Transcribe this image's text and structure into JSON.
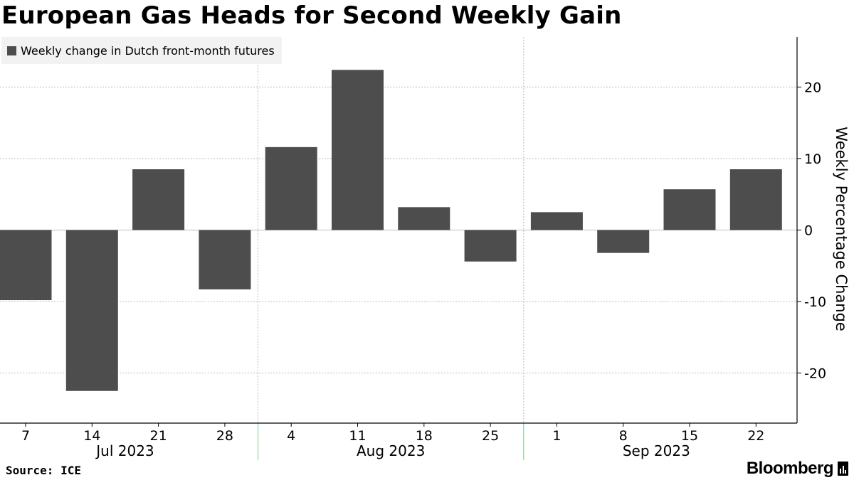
{
  "title": "European Gas Heads for Second Weekly Gain",
  "source": "Source: ICE",
  "brand": "Bloomberg",
  "chart_data": {
    "type": "bar",
    "series": [
      {
        "name": "Weekly change in Dutch front-month futures",
        "color": "#4d4d4d",
        "values": [
          -9.8,
          -22.5,
          8.5,
          -8.3,
          11.6,
          22.4,
          3.2,
          -4.4,
          2.5,
          -3.2,
          5.7,
          8.5
        ]
      }
    ],
    "categories": [
      "7",
      "14",
      "21",
      "28",
      "4",
      "11",
      "18",
      "25",
      "1",
      "8",
      "15",
      "22"
    ],
    "months": [
      {
        "label": "Jul 2023",
        "from": 0,
        "to": 3
      },
      {
        "label": "Aug 2023",
        "from": 4,
        "to": 7
      },
      {
        "label": "Sep 2023",
        "from": 8,
        "to": 11
      }
    ],
    "ylabel": "Weekly Percentage Change",
    "ylim": [
      -27,
      27
    ],
    "yticks": [
      20,
      10,
      0,
      -10,
      -20
    ],
    "grid": true,
    "legend": "top-left",
    "yaxis_position": "right"
  }
}
